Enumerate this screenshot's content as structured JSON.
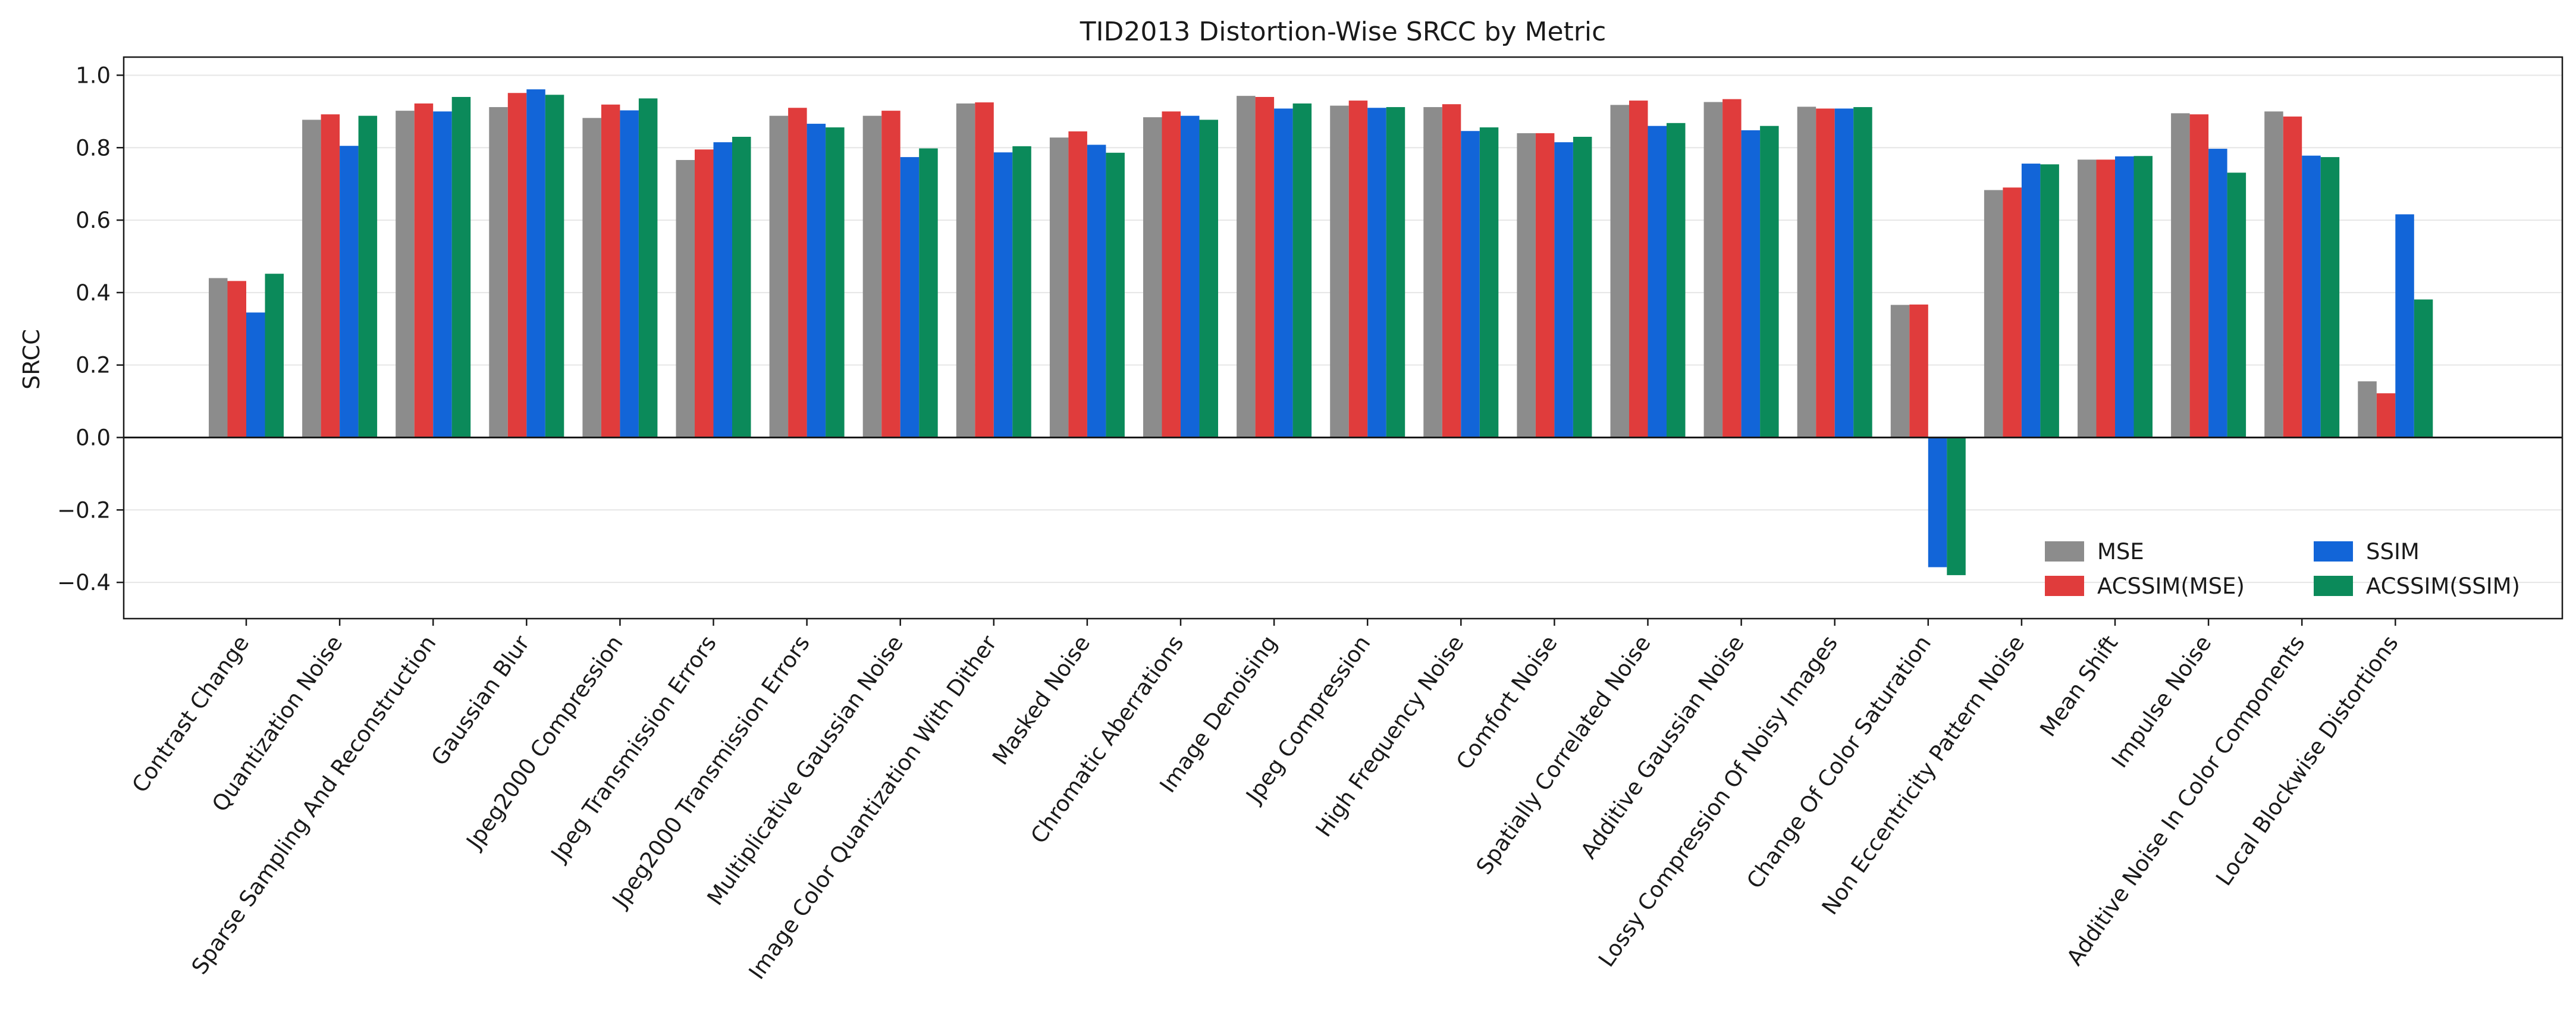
{
  "chart_data": {
    "type": "bar",
    "title": "TID2013 Distortion-Wise SRCC by Metric",
    "xlabel": "",
    "ylabel": "SRCC",
    "ylim": [
      -0.5,
      1.05
    ],
    "yticks": [
      -0.4,
      -0.2,
      0.0,
      0.2,
      0.4,
      0.6,
      0.8,
      1.0
    ],
    "ytick_labels": [
      "−0.4",
      "−0.2",
      "0.0",
      "0.2",
      "0.4",
      "0.6",
      "0.8",
      "1.0"
    ],
    "grid": true,
    "legend_position": "lower right",
    "categories": [
      "Contrast Change",
      "Quantization Noise",
      "Sparse Sampling And Reconstruction",
      "Gaussian Blur",
      "Jpeg2000 Compression",
      "Jpeg Transmission Errors",
      "Jpeg2000 Transmission Errors",
      "Multiplicative Gaussian Noise",
      "Image Color Quantization With Dither",
      "Masked Noise",
      "Chromatic Aberrations",
      "Image Denoising",
      "Jpeg Compression",
      "High Frequency Noise",
      "Comfort Noise",
      "Spatially Correlated Noise",
      "Additive Gaussian Noise",
      "Lossy Compression Of Noisy Images",
      "Change Of Color Saturation",
      "Non Eccentricity Pattern Noise",
      "Mean Shift",
      "Impulse Noise",
      "Additive Noise In Color Components",
      "Local Blockwise Distortions"
    ],
    "series": [
      {
        "name": "MSE",
        "color": "#8c8c8c",
        "values": [
          0.44,
          0.877,
          0.902,
          0.912,
          0.882,
          0.766,
          0.888,
          0.888,
          0.922,
          0.828,
          0.884,
          0.943,
          0.916,
          0.912,
          0.84,
          0.918,
          0.926,
          0.913,
          0.366,
          0.683,
          0.767,
          0.895,
          0.9,
          0.155
        ]
      },
      {
        "name": "ACSSIM(MSE)",
        "color": "#e03c3c",
        "values": [
          0.432,
          0.892,
          0.922,
          0.951,
          0.919,
          0.795,
          0.91,
          0.902,
          0.925,
          0.845,
          0.9,
          0.94,
          0.93,
          0.92,
          0.84,
          0.93,
          0.934,
          0.908,
          0.367,
          0.69,
          0.767,
          0.892,
          0.886,
          0.122
        ]
      },
      {
        "name": "SSIM",
        "color": "#1265d8",
        "values": [
          0.345,
          0.805,
          0.9,
          0.961,
          0.903,
          0.815,
          0.866,
          0.774,
          0.787,
          0.808,
          0.888,
          0.908,
          0.91,
          0.846,
          0.815,
          0.86,
          0.848,
          0.908,
          -0.358,
          0.756,
          0.776,
          0.797,
          0.778,
          0.616
        ]
      },
      {
        "name": "ACSSIM(SSIM)",
        "color": "#0b8a5a",
        "values": [
          0.452,
          0.888,
          0.94,
          0.946,
          0.936,
          0.83,
          0.856,
          0.798,
          0.804,
          0.786,
          0.877,
          0.922,
          0.912,
          0.856,
          0.83,
          0.868,
          0.86,
          0.912,
          -0.38,
          0.754,
          0.777,
          0.731,
          0.774,
          0.381
        ]
      }
    ]
  }
}
